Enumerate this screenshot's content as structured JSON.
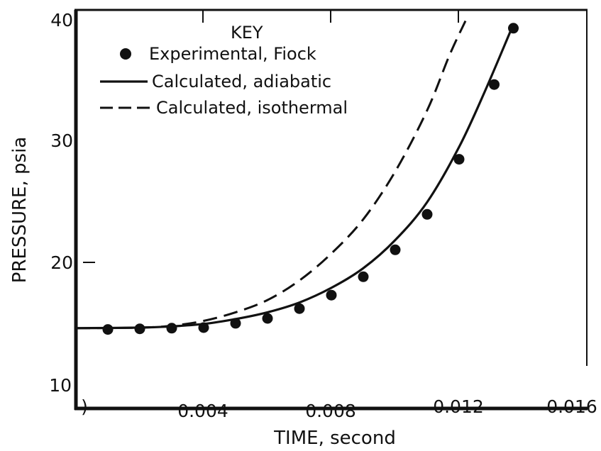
{
  "chart_data": {
    "type": "line",
    "title": "",
    "xlabel": "TIME, second",
    "ylabel": "PRESSURE, psia",
    "xlim": [
      0,
      0.016
    ],
    "ylim": [
      10,
      40
    ],
    "x_ticks": [
      {
        "value": 0,
        "label": ")"
      },
      {
        "value": 0.004,
        "label": "0.004"
      },
      {
        "value": 0.008,
        "label": "0.008"
      },
      {
        "value": 0.012,
        "label": "0.012"
      },
      {
        "value": 0.016,
        "label": "0.016"
      }
    ],
    "y_ticks": [
      {
        "value": 10,
        "label": "10"
      },
      {
        "value": 20,
        "label": "20"
      },
      {
        "value": 30,
        "label": "30"
      },
      {
        "value": 40,
        "label": "40"
      }
    ],
    "legend": {
      "title": "KEY",
      "placement": "top-left",
      "entries": [
        {
          "label": "Experimental, Fiock",
          "style": "dot"
        },
        {
          "label": "Calculated, adiabatic",
          "style": "solid"
        },
        {
          "label": "Calculated, isothermal",
          "style": "dashed"
        }
      ]
    },
    "series": [
      {
        "name": "Experimental, Fiock",
        "kind": "scatter",
        "points": [
          [
            0.001,
            14.6
          ],
          [
            0.002,
            14.65
          ],
          [
            0.003,
            14.7
          ],
          [
            0.004,
            14.75
          ],
          [
            0.005,
            15.1
          ],
          [
            0.006,
            15.5
          ],
          [
            0.007,
            16.3
          ],
          [
            0.008,
            17.4
          ],
          [
            0.009,
            18.9
          ],
          [
            0.01,
            21.1
          ],
          [
            0.011,
            24.0
          ],
          [
            0.012,
            28.5
          ],
          [
            0.0131,
            34.6
          ],
          [
            0.0137,
            39.2
          ]
        ]
      },
      {
        "name": "Calculated, adiabatic",
        "kind": "line-solid",
        "points": [
          [
            0.0,
            14.7
          ],
          [
            0.002,
            14.75
          ],
          [
            0.003,
            14.85
          ],
          [
            0.004,
            15.05
          ],
          [
            0.005,
            15.45
          ],
          [
            0.006,
            16.0
          ],
          [
            0.007,
            16.8
          ],
          [
            0.008,
            18.0
          ],
          [
            0.009,
            19.6
          ],
          [
            0.01,
            21.9
          ],
          [
            0.011,
            25.0
          ],
          [
            0.012,
            29.5
          ],
          [
            0.0128,
            34.0
          ],
          [
            0.0136,
            38.9
          ]
        ]
      },
      {
        "name": "Calculated, isothermal",
        "kind": "line-dashed",
        "points": [
          [
            0.0,
            14.7
          ],
          [
            0.002,
            14.75
          ],
          [
            0.003,
            14.9
          ],
          [
            0.004,
            15.3
          ],
          [
            0.005,
            16.0
          ],
          [
            0.006,
            17.0
          ],
          [
            0.007,
            18.6
          ],
          [
            0.008,
            20.8
          ],
          [
            0.009,
            23.6
          ],
          [
            0.01,
            27.5
          ],
          [
            0.011,
            32.5
          ],
          [
            0.0117,
            37.0
          ],
          [
            0.0122,
            39.8
          ]
        ]
      }
    ]
  }
}
